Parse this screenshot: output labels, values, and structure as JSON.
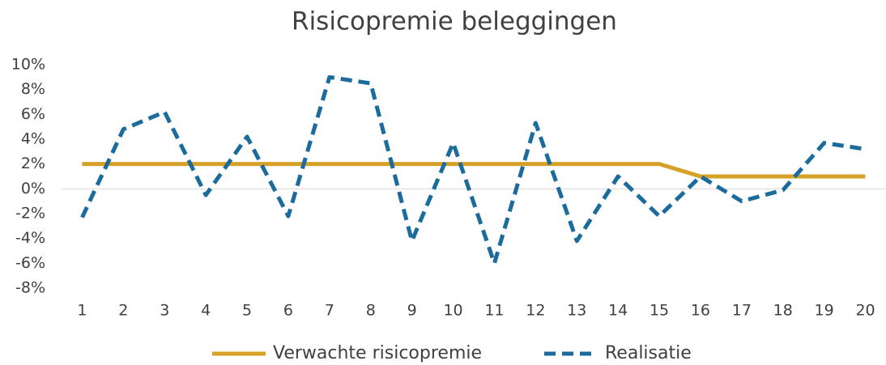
{
  "chart_data": {
    "type": "line",
    "title": "Risicopremie beleggingen",
    "categories": [
      "1",
      "2",
      "3",
      "4",
      "5",
      "6",
      "7",
      "8",
      "9",
      "10",
      "11",
      "12",
      "13",
      "14",
      "15",
      "16",
      "17",
      "18",
      "19",
      "20"
    ],
    "series": [
      {
        "name": "Verwachte risicopremie",
        "color": "#d6a127",
        "dash": "solid",
        "values": [
          2,
          2,
          2,
          2,
          2,
          2,
          2,
          2,
          2,
          2,
          2,
          2,
          2,
          2,
          2,
          1,
          1,
          1,
          1,
          1
        ]
      },
      {
        "name": "Realisatie",
        "color": "#1b6c9c",
        "dash": "dashed",
        "values": [
          -2.3,
          4.8,
          6.2,
          -0.5,
          4.2,
          -2.2,
          9.0,
          8.5,
          -4.2,
          3.7,
          -6.0,
          5.3,
          -4.2,
          1.0,
          -2.2,
          1.0,
          -1.0,
          -0.1,
          3.7,
          3.2
        ]
      }
    ],
    "ylim": [
      -8,
      10
    ],
    "yticks": [
      {
        "value": -8,
        "label": "-8%"
      },
      {
        "value": -6,
        "label": "-6%"
      },
      {
        "value": -4,
        "label": "-4%"
      },
      {
        "value": -2,
        "label": "-2%"
      },
      {
        "value": 0,
        "label": "0%"
      },
      {
        "value": 2,
        "label": "2%"
      },
      {
        "value": 4,
        "label": "4%"
      },
      {
        "value": 6,
        "label": "6%"
      },
      {
        "value": 8,
        "label": "8%"
      },
      {
        "value": 10,
        "label": "10%"
      }
    ],
    "legend": "bottom"
  }
}
